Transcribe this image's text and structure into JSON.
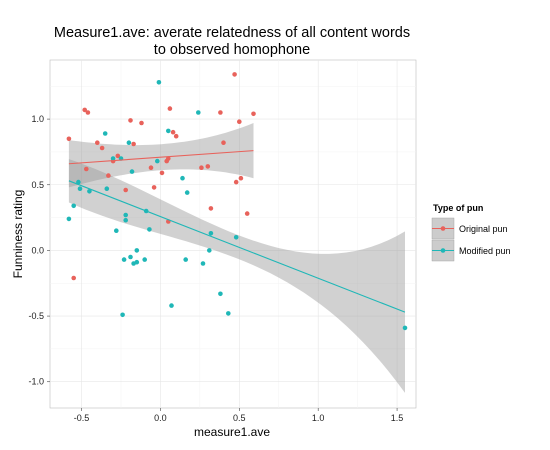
{
  "chart_data": {
    "type": "scatter",
    "title_lines": [
      "Measure1.ave: averate relatedness of all content words",
      "to observed homophone"
    ],
    "xlabel": "measure1.ave",
    "ylabel": "Funniness rating",
    "xlim": [
      -0.7,
      1.62
    ],
    "ylim": [
      -1.2,
      1.45
    ],
    "x_ticks": [
      -0.5,
      0.0,
      0.5,
      1.0,
      1.5
    ],
    "x_tick_labels": [
      "-0.5",
      "0.0",
      "0.5",
      "1.0",
      "1.5"
    ],
    "y_ticks": [
      -1.0,
      -0.5,
      0.0,
      0.5,
      1.0
    ],
    "y_tick_labels": [
      "-1.0",
      "-0.5",
      "0.0",
      "0.5",
      "1.0"
    ],
    "grid": true,
    "legend": {
      "title": "Type of pun",
      "position": "right"
    },
    "series": [
      {
        "name": "Original pun",
        "color": "#e8625b",
        "points": [
          [
            -0.58,
            0.85
          ],
          [
            -0.55,
            -0.21
          ],
          [
            -0.48,
            1.07
          ],
          [
            -0.46,
            1.05
          ],
          [
            -0.47,
            0.62
          ],
          [
            -0.4,
            0.82
          ],
          [
            -0.37,
            0.78
          ],
          [
            -0.33,
            0.57
          ],
          [
            -0.3,
            0.68
          ],
          [
            -0.27,
            0.72
          ],
          [
            -0.22,
            0.46
          ],
          [
            -0.19,
            0.99
          ],
          [
            -0.17,
            0.81
          ],
          [
            -0.12,
            0.97
          ],
          [
            -0.06,
            0.63
          ],
          [
            -0.04,
            0.48
          ],
          [
            0.01,
            0.59
          ],
          [
            0.04,
            0.68
          ],
          [
            0.05,
            0.7
          ],
          [
            0.08,
            0.9
          ],
          [
            0.1,
            0.87
          ],
          [
            0.06,
            1.08
          ],
          [
            0.05,
            0.22
          ],
          [
            0.26,
            0.63
          ],
          [
            0.3,
            0.64
          ],
          [
            0.32,
            0.32
          ],
          [
            0.38,
            1.05
          ],
          [
            0.4,
            0.82
          ],
          [
            0.47,
            1.34
          ],
          [
            0.48,
            0.52
          ],
          [
            0.5,
            0.98
          ],
          [
            0.51,
            0.55
          ],
          [
            0.55,
            0.28
          ],
          [
            0.59,
            1.04
          ]
        ]
      },
      {
        "name": "Modified pun",
        "color": "#1fb7b7",
        "points": [
          [
            -0.58,
            0.24
          ],
          [
            -0.55,
            0.34
          ],
          [
            -0.52,
            0.52
          ],
          [
            -0.51,
            0.47
          ],
          [
            -0.45,
            0.45
          ],
          [
            -0.35,
            0.89
          ],
          [
            -0.34,
            0.47
          ],
          [
            -0.3,
            0.7
          ],
          [
            -0.28,
            0.15
          ],
          [
            -0.25,
            0.7
          ],
          [
            -0.24,
            -0.49
          ],
          [
            -0.23,
            -0.07
          ],
          [
            -0.22,
            0.23
          ],
          [
            -0.22,
            0.27
          ],
          [
            -0.2,
            0.82
          ],
          [
            -0.19,
            -0.05
          ],
          [
            -0.18,
            0.6
          ],
          [
            -0.17,
            -0.1
          ],
          [
            -0.15,
            0.0
          ],
          [
            -0.15,
            -0.09
          ],
          [
            -0.1,
            -0.07
          ],
          [
            -0.09,
            0.3
          ],
          [
            -0.07,
            0.16
          ],
          [
            -0.02,
            0.68
          ],
          [
            -0.01,
            1.28
          ],
          [
            0.05,
            0.91
          ],
          [
            0.07,
            -0.42
          ],
          [
            0.14,
            0.55
          ],
          [
            0.16,
            -0.07
          ],
          [
            0.17,
            0.44
          ],
          [
            0.24,
            1.05
          ],
          [
            0.27,
            -0.1
          ],
          [
            0.31,
            0.0
          ],
          [
            0.32,
            0.13
          ],
          [
            0.38,
            -0.33
          ],
          [
            0.43,
            -0.48
          ],
          [
            0.48,
            0.1
          ],
          [
            1.55,
            -0.59
          ]
        ]
      }
    ],
    "fits": [
      {
        "series": "Original pun",
        "x_range": [
          -0.58,
          0.59
        ],
        "y_start": 0.66,
        "y_end": 0.76,
        "ci_lower": [
          0.48,
          0.55
        ],
        "ci_upper": [
          0.84,
          0.97
        ]
      },
      {
        "series": "Modified pun",
        "x_range": [
          -0.58,
          1.55
        ],
        "y_start": 0.53,
        "y_end": -0.47,
        "ci_lower": [
          0.36,
          -1.09
        ],
        "ci_upper": [
          0.69,
          0.14
        ]
      }
    ]
  }
}
